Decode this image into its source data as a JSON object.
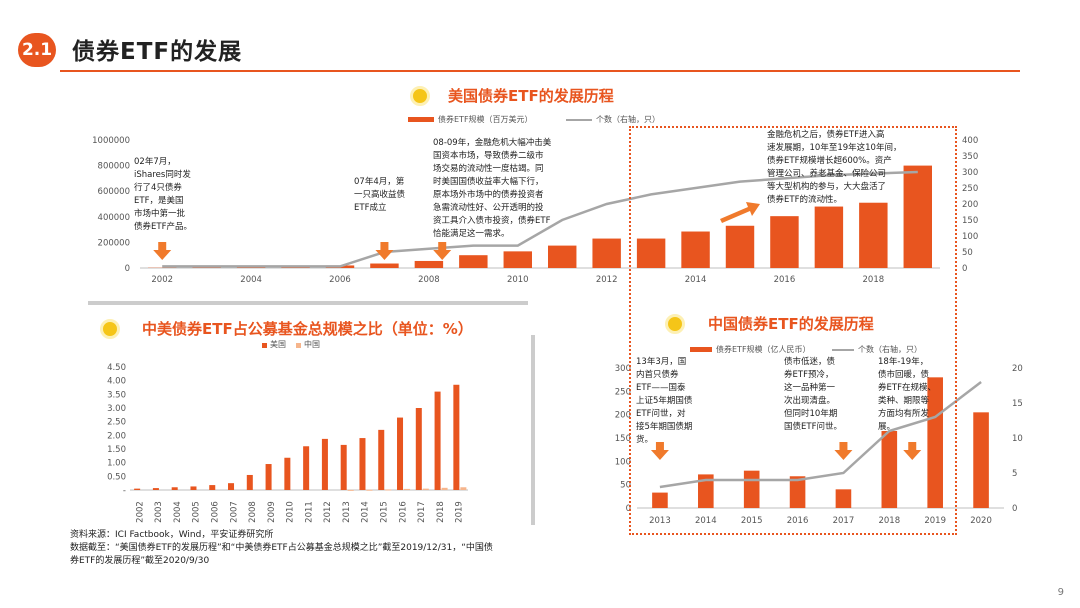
{
  "header": {
    "badge": "2.1",
    "title": "债券ETF的发展"
  },
  "page_number": "9",
  "source": {
    "line1": "资料来源：ICI Factbook，Wind，平安证券研究所",
    "line2": "数据截至：“美国债券ETF的发展历程”和“中美债券ETF占公募基金总规模之比”截至2019/12/31，“中国债券ETF的发展历程”截至2020/9/30"
  },
  "chart_data": [
    {
      "type": "bar",
      "title": "美国债券ETF的发展历程",
      "categories": [
        "2002",
        "2003",
        "2004",
        "2005",
        "2006",
        "2007",
        "2008",
        "2009",
        "2010",
        "2011",
        "2012",
        "2013",
        "2014",
        "2015",
        "2016",
        "2017",
        "2018",
        "2019"
      ],
      "x_tick_labels": [
        "2002",
        "2004",
        "2006",
        "2008",
        "2010",
        "2012",
        "2014",
        "2016",
        "2018"
      ],
      "series": [
        {
          "name": "债券ETF规模（百万美元）",
          "type": "bar",
          "axis": "left",
          "color": "#e8551f",
          "values": [
            2000,
            3000,
            4000,
            6000,
            20000,
            35000,
            55000,
            100000,
            130000,
            175000,
            230000,
            230000,
            285000,
            330000,
            405000,
            480000,
            510000,
            800000
          ]
        },
        {
          "name": "个数（右轴，只）",
          "type": "line",
          "axis": "right",
          "color": "#a6a6a6",
          "values": [
            5,
            5,
            5,
            5,
            5,
            50,
            60,
            70,
            70,
            150,
            200,
            230,
            250,
            270,
            280,
            290,
            295,
            300
          ]
        }
      ],
      "ylim_left": [
        0,
        1000000
      ],
      "yticks_left": [
        "0",
        "200000",
        "400000",
        "600000",
        "800000",
        "1000000"
      ],
      "ylim_right": [
        0,
        400
      ],
      "yticks_right": [
        "0",
        "50",
        "100",
        "150",
        "200",
        "250",
        "300",
        "350",
        "400"
      ],
      "annotations": [
        {
          "id": "note-2002",
          "text": "02年7月，\niShares同时发\n行了4只债券\nETF，是美国\n市场中第一批\n债券ETF产品。"
        },
        {
          "id": "note-2007",
          "text": "07年4月，第\n一只高收益债\nETF成立"
        },
        {
          "id": "note-2008",
          "text": "08-09年，金融危机大幅冲击美\n国资本市场，导致债券二级市\n场交易的流动性一度枯竭。同\n时美国国债收益率大幅下行，\n原本场外市场中的债券投资者\n急需流动性好、公开透明的投\n资工具介入债市投资，债券ETF\n恰能满足这一需求。"
        },
        {
          "id": "note-post-crisis",
          "text": "金融危机之后，债券ETF进入高\n速发展期，10年至19年这10年间，\n债券ETF规模增长超600%。资产\n管理公司、养老基金、保险公司\n等大型机构的参与，大大盘活了\n债券ETF的流动性。"
        }
      ]
    },
    {
      "type": "bar",
      "title": "中美债券ETF占公募基金总规模之比（单位：%）",
      "categories": [
        "2002",
        "2003",
        "2004",
        "2005",
        "2006",
        "2007",
        "2008",
        "2009",
        "2010",
        "2011",
        "2012",
        "2013",
        "2014",
        "2015",
        "2016",
        "2017",
        "2018",
        "2019"
      ],
      "series": [
        {
          "name": "美国",
          "color": "#e8551f",
          "values": [
            0.05,
            0.07,
            0.1,
            0.13,
            0.18,
            0.25,
            0.55,
            0.95,
            1.18,
            1.6,
            1.87,
            1.65,
            1.9,
            2.2,
            2.65,
            3.0,
            3.6,
            3.85
          ]
        },
        {
          "name": "中国",
          "color": "#f6b58c",
          "values": [
            0,
            0,
            0,
            0,
            0,
            0,
            0,
            0,
            0,
            0,
            0,
            0.005,
            0.01,
            0.02,
            0.04,
            0.05,
            0.08,
            0.1
          ]
        }
      ],
      "ylim": [
        0,
        4.5
      ],
      "yticks": [
        "-",
        "0.50",
        "1.00",
        "1.50",
        "2.00",
        "2.50",
        "3.00",
        "3.50",
        "4.00",
        "4.50"
      ]
    },
    {
      "type": "bar",
      "title": "中国债券ETF的发展历程",
      "categories": [
        "2013",
        "2014",
        "2015",
        "2016",
        "2017",
        "2018",
        "2019",
        "2020"
      ],
      "series": [
        {
          "name": "债券ETF规模（亿人民币）",
          "type": "bar",
          "axis": "left",
          "color": "#e8551f",
          "values": [
            33,
            72,
            80,
            68,
            40,
            165,
            280,
            205
          ]
        },
        {
          "name": "个数（右轴，只）",
          "type": "line",
          "axis": "right",
          "color": "#a6a6a6",
          "values": [
            3,
            4,
            4,
            4,
            5,
            11,
            13,
            18
          ]
        }
      ],
      "ylim_left": [
        0,
        300
      ],
      "yticks_left": [
        "0",
        "50",
        "100",
        "150",
        "200",
        "250",
        "300"
      ],
      "ylim_right": [
        0,
        20
      ],
      "yticks_right": [
        "0",
        "5",
        "10",
        "15",
        "20"
      ],
      "annotations": [
        {
          "id": "note-2013",
          "text": "13年3月，国\n内首只债券\nETF——国泰\n上证5年期国债\nETF问世，对\n接5年期国债期\n货。"
        },
        {
          "id": "note-2017",
          "text": "债市低迷，债\n券ETF预冷，\n这一品种第一\n次出现清盘。\n但同时10年期\n国债ETF问世。"
        },
        {
          "id": "note-2018",
          "text": "18年-19年，\n债市回暖，债\n券ETF在规模、\n类种、期限等\n方面均有所发\n展。"
        }
      ]
    }
  ]
}
